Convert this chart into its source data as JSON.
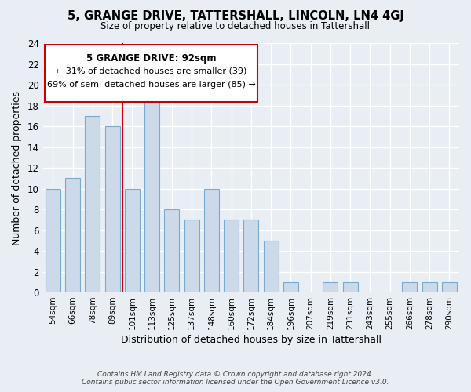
{
  "title": "5, GRANGE DRIVE, TATTERSHALL, LINCOLN, LN4 4GJ",
  "subtitle": "Size of property relative to detached houses in Tattershall",
  "xlabel": "Distribution of detached houses by size in Tattershall",
  "ylabel": "Number of detached properties",
  "footer_line1": "Contains HM Land Registry data © Crown copyright and database right 2024.",
  "footer_line2": "Contains public sector information licensed under the Open Government Licence v3.0.",
  "bar_labels": [
    "54sqm",
    "66sqm",
    "78sqm",
    "89sqm",
    "101sqm",
    "113sqm",
    "125sqm",
    "137sqm",
    "148sqm",
    "160sqm",
    "172sqm",
    "184sqm",
    "196sqm",
    "207sqm",
    "219sqm",
    "231sqm",
    "243sqm",
    "255sqm",
    "266sqm",
    "278sqm",
    "290sqm"
  ],
  "bar_values": [
    10,
    11,
    17,
    16,
    10,
    19,
    8,
    7,
    10,
    7,
    7,
    5,
    1,
    0,
    1,
    1,
    0,
    0,
    1,
    1,
    1
  ],
  "bar_color": "#ccd9e8",
  "bar_edge_color": "#7aabcf",
  "ylim": [
    0,
    24
  ],
  "yticks": [
    0,
    2,
    4,
    6,
    8,
    10,
    12,
    14,
    16,
    18,
    20,
    22,
    24
  ],
  "vline_color": "#cc0000",
  "annotation_title": "5 GRANGE DRIVE: 92sqm",
  "annotation_line1": "← 31% of detached houses are smaller (39)",
  "annotation_line2": "69% of semi-detached houses are larger (85) →",
  "box_color": "#ffffff",
  "box_edge_color": "#cc0000",
  "background_color": "#e8eef4",
  "grid_color": "#ffffff",
  "bar_width": 0.75
}
